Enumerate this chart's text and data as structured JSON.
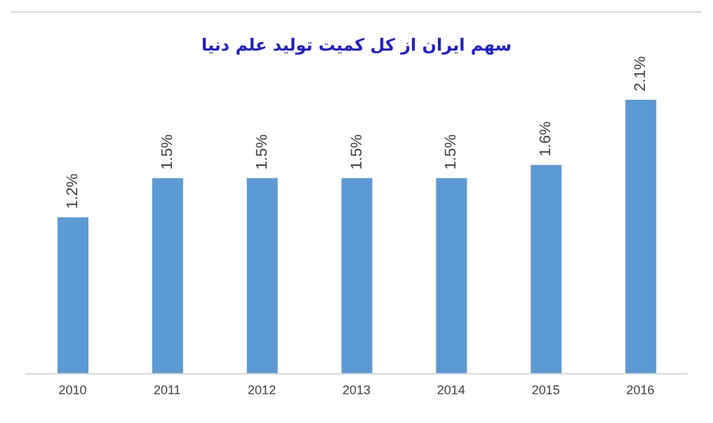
{
  "chart_data": {
    "type": "bar",
    "title": "سهم ایران از کل کمیت تولید علم دنیا",
    "categories": [
      "2010",
      "2011",
      "2012",
      "2013",
      "2014",
      "2015",
      "2016"
    ],
    "values": [
      1.2,
      1.5,
      1.5,
      1.5,
      1.5,
      1.6,
      2.1
    ],
    "value_labels": [
      "1.2%",
      "1.5%",
      "1.5%",
      "1.5%",
      "1.5%",
      "1.6%",
      "2.1%"
    ],
    "color": "#5b9bd5",
    "grid": false,
    "legend": false
  }
}
